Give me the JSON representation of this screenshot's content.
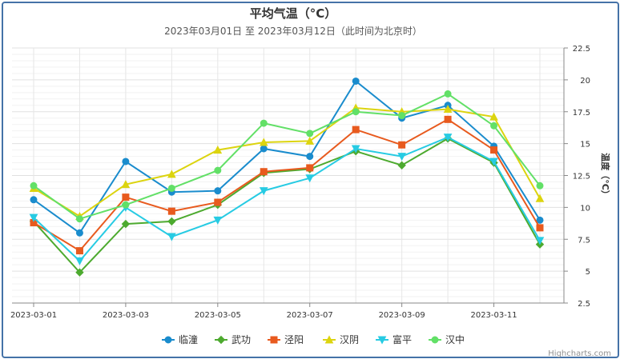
{
  "chart_data": {
    "type": "line",
    "title": "平均气温（°C）",
    "subtitle": "2023年03月01日 至 2023年03月12日（此时间为北京时）",
    "ylabel": "温度（°C）",
    "ylim": [
      2.5,
      22.5
    ],
    "yticks": [
      "2.5",
      "5",
      "7.5",
      "10",
      "12.5",
      "15",
      "17.5",
      "20",
      "22.5"
    ],
    "xticks": [
      "2023-03-01",
      "2023-03-03",
      "2023-03-05",
      "2023-03-07",
      "2023-03-09",
      "2023-03-11"
    ],
    "x": [
      "2023-03-01",
      "2023-03-02",
      "2023-03-03",
      "2023-03-04",
      "2023-03-05",
      "2023-03-06",
      "2023-03-07",
      "2023-03-08",
      "2023-03-09",
      "2023-03-10",
      "2023-03-11",
      "2023-03-12"
    ],
    "series": [
      {
        "name": "临潼",
        "color": "#1a8ccd",
        "marker": "circle",
        "values": [
          10.6,
          8.0,
          13.6,
          11.2,
          11.3,
          14.6,
          14.0,
          19.9,
          17.0,
          18.0,
          14.8,
          9.0
        ]
      },
      {
        "name": "武功",
        "color": "#4daa2f",
        "marker": "diamond",
        "values": [
          8.9,
          4.9,
          8.7,
          8.9,
          10.2,
          12.7,
          13.0,
          14.4,
          13.3,
          15.4,
          13.5,
          7.1
        ]
      },
      {
        "name": "泾阳",
        "color": "#e85a1e",
        "marker": "square",
        "values": [
          8.8,
          6.6,
          10.8,
          9.7,
          10.4,
          12.8,
          13.1,
          16.1,
          14.9,
          16.9,
          14.5,
          8.4
        ]
      },
      {
        "name": "汉阴",
        "color": "#dcd40f",
        "marker": "triangle",
        "values": [
          11.5,
          9.3,
          11.8,
          12.6,
          14.5,
          15.1,
          15.2,
          17.8,
          17.5,
          17.7,
          17.1,
          10.7
        ]
      },
      {
        "name": "富平",
        "color": "#27cbe3",
        "marker": "triangle-down",
        "values": [
          9.2,
          5.8,
          10.0,
          7.7,
          9.0,
          11.3,
          12.3,
          14.6,
          14.0,
          15.5,
          13.6,
          7.4
        ]
      },
      {
        "name": "汉中",
        "color": "#62e067",
        "marker": "circle",
        "values": [
          11.7,
          9.1,
          10.2,
          11.5,
          12.9,
          16.6,
          15.8,
          17.5,
          17.2,
          18.9,
          16.4,
          11.7
        ]
      }
    ]
  },
  "credit": "Highcharts.com"
}
